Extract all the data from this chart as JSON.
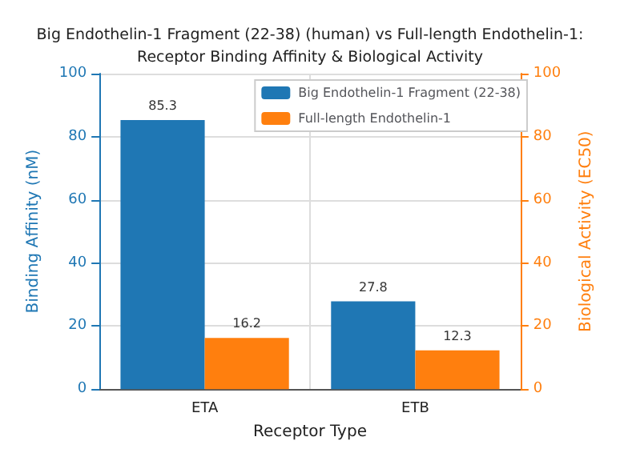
{
  "chart_data": {
    "type": "bar",
    "title": "Big Endothelin-1 Fragment (22-38) (human) vs Full-length Endothelin-1:\nReceptor Binding Affinity & Biological Activity",
    "xlabel": "Receptor Type",
    "ylabel": "Binding Affinity (nM)",
    "y2label": "Biological Activity (EC50)",
    "categories": [
      "ETA",
      "ETB"
    ],
    "series": [
      {
        "name": "Big Endothelin-1 Fragment (22-38)",
        "color": "#1f77b4",
        "values": [
          85.3,
          27.8
        ]
      },
      {
        "name": "Full-length Endothelin-1",
        "color": "#ff7f0e",
        "values": [
          16.2,
          12.3
        ],
        "axis": "y2"
      }
    ],
    "ylim": [
      0,
      100
    ],
    "yticks": [
      0,
      20,
      40,
      60,
      80,
      100
    ],
    "y2lim": [
      0,
      100
    ],
    "y2ticks": [
      0,
      20,
      40,
      60,
      80,
      100
    ],
    "grid": true,
    "legend": "top right",
    "data_labels": true
  }
}
